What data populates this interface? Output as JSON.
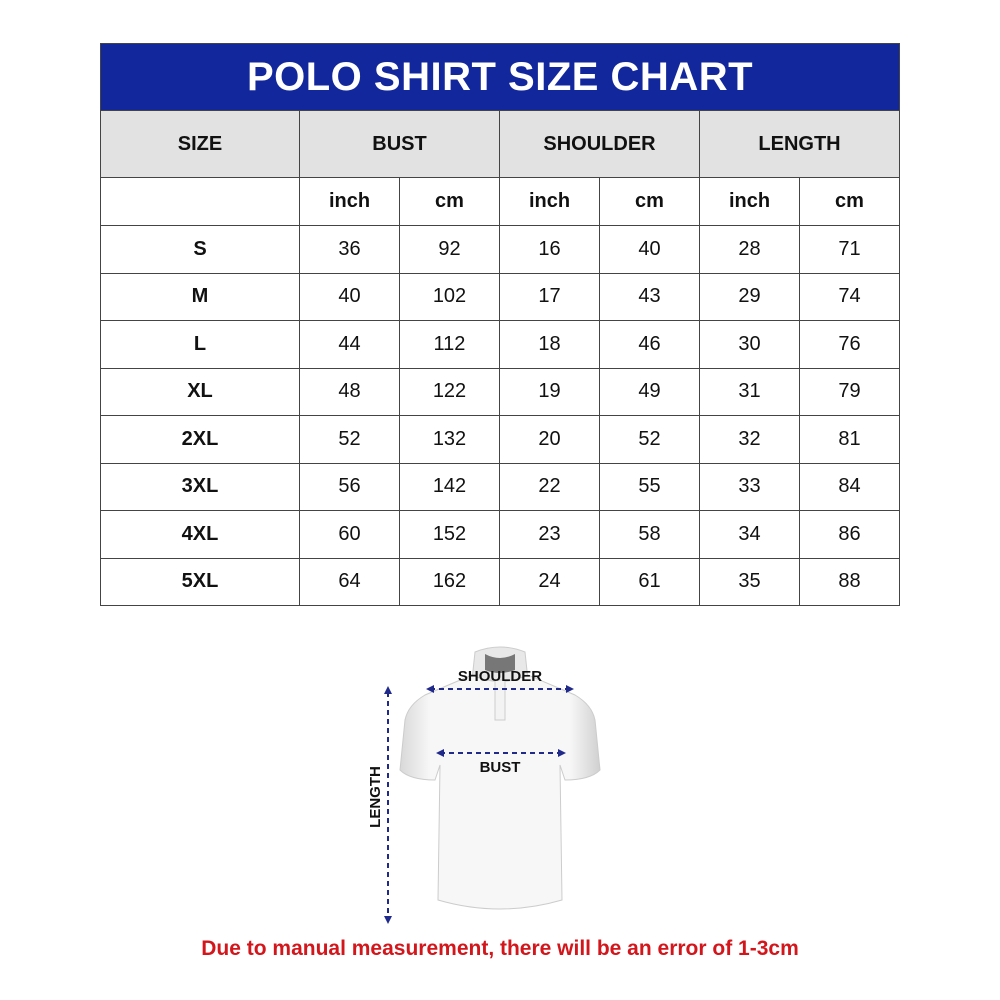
{
  "title": "POLO SHIRT SIZE CHART",
  "headers": {
    "size": "SIZE",
    "bust": "BUST",
    "shoulder": "SHOULDER",
    "length": "LENGTH"
  },
  "units": [
    "inch",
    "cm",
    "inch",
    "cm",
    "inch",
    "cm"
  ],
  "rows": [
    {
      "size": "S",
      "values": [
        "36",
        "92",
        "16",
        "40",
        "28",
        "71"
      ]
    },
    {
      "size": "M",
      "values": [
        "40",
        "102",
        "17",
        "43",
        "29",
        "74"
      ]
    },
    {
      "size": "L",
      "values": [
        "44",
        "112",
        "18",
        "46",
        "30",
        "76"
      ]
    },
    {
      "size": "XL",
      "values": [
        "48",
        "122",
        "19",
        "49",
        "31",
        "79"
      ]
    },
    {
      "size": "2XL",
      "values": [
        "52",
        "132",
        "20",
        "52",
        "32",
        "81"
      ]
    },
    {
      "size": "3XL",
      "values": [
        "56",
        "142",
        "22",
        "55",
        "33",
        "84"
      ]
    },
    {
      "size": "4XL",
      "values": [
        "60",
        "152",
        "23",
        "58",
        "34",
        "86"
      ]
    },
    {
      "size": "5XL",
      "values": [
        "64",
        "162",
        "24",
        "61",
        "35",
        "88"
      ]
    }
  ],
  "diagram": {
    "shoulder": "SHOULDER",
    "bust": "BUST",
    "length": "LENGTH"
  },
  "note": "Due to manual measurement, there will be an error of 1-3cm",
  "colors": {
    "title_bg": "#13279c",
    "header_bg": "#e2e2e2",
    "note": "#d3161b",
    "arrows": "#1f2a8a"
  }
}
